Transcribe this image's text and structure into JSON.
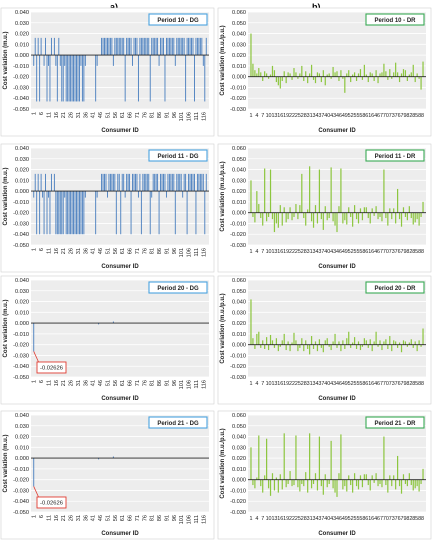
{
  "panel_labels": [
    "a)",
    "b)"
  ],
  "colors": {
    "dg": "#4a7fbf",
    "dr": "#8dc63f",
    "dg_border": "#4aa3df",
    "dr_border": "#3aaa55",
    "callout": "#e03c31"
  },
  "chart_data": [
    {
      "id": "dg10",
      "type": "bar",
      "title": "Period 10 - DG",
      "xlabel": "Consumer ID",
      "ylabel": "Cost variation (m.u.)",
      "ylim": [
        -0.05,
        0.04
      ],
      "yticks": [
        "-0.050",
        "-0.040",
        "-0.030",
        "-0.020",
        "-0.010",
        "0.000",
        "0.010",
        "0.020",
        "0.030",
        "0.040"
      ],
      "xticks": [
        "1",
        "6",
        "11",
        "16",
        "21",
        "26",
        "31",
        "36",
        "41",
        "46",
        "51",
        "56",
        "61",
        "66",
        "71",
        "76",
        "81",
        "86",
        "91",
        "96",
        "101",
        "106",
        "111",
        "116"
      ],
      "n": 118,
      "values": [
        -0.01,
        0.016,
        -0.043,
        0.016,
        -0.043,
        0.016,
        0,
        -0.01,
        0.016,
        -0.043,
        -0.01,
        -0.043,
        0.016,
        0,
        0.016,
        -0.01,
        -0.043,
        0.016,
        -0.01,
        -0.043,
        -0.043,
        -0.01,
        -0.043,
        -0.043,
        -0.043,
        -0.043,
        -0.043,
        -0.043,
        -0.043,
        -0.043,
        -0.043,
        -0.043,
        -0.01,
        -0.043,
        -0.043,
        -0.01,
        0,
        0,
        0,
        0,
        0,
        0,
        -0.043,
        -0.01,
        0,
        0,
        0.016,
        0.016,
        0.016,
        0.016,
        0.016,
        0.016,
        0.016,
        0.016,
        -0.01,
        0.016,
        0.016,
        0.016,
        0.016,
        0.016,
        0.016,
        0.016,
        -0.043,
        0.016,
        0.016,
        0.016,
        0.016,
        -0.01,
        0.016,
        0.016,
        0.016,
        -0.043,
        0.016,
        0.016,
        0.016,
        0.016,
        0.016,
        0.016,
        0.016,
        -0.043,
        0.016,
        0.016,
        0.016,
        0.016,
        0.016,
        -0.01,
        0.016,
        0.016,
        0.016,
        -0.043,
        0.016,
        0.016,
        0.016,
        0.016,
        0.016,
        0.016,
        -0.01,
        0.016,
        0.016,
        0.016,
        0.016,
        0.016,
        0.016,
        -0.043,
        0.016,
        0.016,
        0.016,
        0.016,
        0.016,
        -0.043,
        0.016,
        0.016,
        0.016,
        0.016,
        0.016,
        -0.01,
        -0.043,
        0.016
      ]
    },
    {
      "id": "dr10",
      "type": "bar",
      "title": "Period 10 - DR",
      "xlabel": "Consumer ID",
      "ylabel": "Cost variation (m.u./p.u.)",
      "ylim": [
        -0.03,
        0.06
      ],
      "yticks": [
        "-0.030",
        "-0.020",
        "-0.010",
        "0.000",
        "0.010",
        "0.020",
        "0.030",
        "0.040",
        "0.050",
        "0.060"
      ],
      "xticks": [
        "1",
        "4",
        "7",
        "10",
        "13",
        "16",
        "19",
        "22",
        "25",
        "28",
        "31",
        "34",
        "37",
        "40",
        "43",
        "46",
        "49",
        "52",
        "55",
        "58",
        "61",
        "64",
        "67",
        "70",
        "73",
        "76",
        "79",
        "82",
        "85",
        "88"
      ],
      "n": 89,
      "values": [
        0.04,
        0.012,
        0.006,
        0.003,
        0.008,
        0.004,
        -0.004,
        0.005,
        0.003,
        -0.002,
        0.002,
        0.01,
        0.006,
        -0.005,
        -0.008,
        -0.011,
        -0.004,
        0.005,
        -0.006,
        0.004,
        0.003,
        -0.003,
        0.008,
        0.004,
        -0.002,
        0.003,
        0.01,
        -0.004,
        0.005,
        -0.006,
        0.003,
        0.011,
        -0.003,
        -0.006,
        0.004,
        0.003,
        -0.005,
        0.006,
        -0.008,
        0.002,
        0.003,
        -0.002,
        0.009,
        0.004,
        0.005,
        -0.004,
        0.006,
        -0.002,
        -0.015,
        0.003,
        0.006,
        -0.005,
        0.002,
        0.004,
        -0.004,
        0.003,
        0.007,
        -0.003,
        0.011,
        0.002,
        -0.005,
        0.004,
        0.003,
        -0.004,
        0.006,
        -0.006,
        0.003,
        0.004,
        0.012,
        0.005,
        -0.003,
        0.007,
        -0.002,
        0.004,
        0.013,
        0.004,
        -0.005,
        0.003,
        0.007,
        0.006,
        -0.004,
        0.002,
        0.004,
        0.011,
        -0.005,
        0.003,
        -0.002,
        -0.012,
        0.014
      ]
    },
    {
      "id": "dg11",
      "type": "bar",
      "title": "Period 11 - DG",
      "xlabel": "Consumer ID",
      "ylabel": "Cost variation (m.u.)",
      "ylim": [
        -0.05,
        0.04
      ],
      "yticks": [
        "-0.050",
        "-0.040",
        "-0.030",
        "-0.020",
        "-0.010",
        "0.000",
        "0.010",
        "0.020",
        "0.030",
        "0.040"
      ],
      "xticks": [
        "1",
        "6",
        "11",
        "16",
        "21",
        "26",
        "31",
        "36",
        "41",
        "46",
        "51",
        "56",
        "61",
        "66",
        "71",
        "76",
        "81",
        "86",
        "91",
        "96",
        "101",
        "106",
        "111",
        "116"
      ],
      "n": 118,
      "values": [
        -0.006,
        0.016,
        -0.04,
        0.016,
        -0.04,
        0.016,
        -0.006,
        -0.04,
        0.016,
        -0.04,
        -0.006,
        -0.04,
        0.016,
        0,
        0.016,
        -0.04,
        -0.04,
        -0.04,
        -0.04,
        -0.04,
        -0.04,
        -0.006,
        -0.04,
        -0.04,
        -0.04,
        -0.04,
        -0.04,
        -0.04,
        -0.04,
        -0.04,
        -0.04,
        -0.04,
        -0.04,
        -0.04,
        -0.04,
        -0.006,
        0,
        0,
        0,
        0,
        0,
        0,
        -0.04,
        -0.006,
        0,
        0,
        0.016,
        0.016,
        0.016,
        0.016,
        -0.006,
        0.016,
        0.016,
        0.016,
        0.016,
        0.016,
        -0.04,
        0.016,
        0.016,
        -0.04,
        0.016,
        0.016,
        -0.006,
        0.016,
        0.016,
        0.016,
        -0.04,
        0.016,
        0.016,
        0.016,
        0.016,
        -0.006,
        0.016,
        -0.04,
        0.016,
        0.016,
        0.016,
        0.016,
        0.016,
        -0.04,
        -0.006,
        0.016,
        0.016,
        0.016,
        0.016,
        -0.04,
        0.016,
        0.016,
        0.016,
        0.016,
        -0.006,
        0.016,
        0.016,
        0.016,
        0.016,
        0.016,
        -0.04,
        0.016,
        0.016,
        0.016,
        0.016,
        -0.006,
        0.016,
        0.016,
        -0.04,
        0.016,
        0.016,
        0.016,
        0.016,
        0.016,
        -0.04,
        0.016,
        0.016,
        0.016,
        0.016,
        0.016,
        -0.04,
        0.016
      ]
    },
    {
      "id": "dr11",
      "type": "bar",
      "title": "Period 11 - DR",
      "xlabel": "Consumer ID",
      "ylabel": "Cost variation (m.u./p.u.)",
      "ylim": [
        -0.03,
        0.06
      ],
      "yticks": [
        "-0.030",
        "-0.020",
        "-0.010",
        "0.000",
        "0.010",
        "0.020",
        "0.030",
        "0.040",
        "0.050",
        "0.060"
      ],
      "xticks": [
        "1",
        "4",
        "7",
        "10",
        "13",
        "16",
        "19",
        "22",
        "25",
        "28",
        "31",
        "34",
        "37",
        "40",
        "43",
        "46",
        "49",
        "52",
        "55",
        "58",
        "61",
        "64",
        "67",
        "70",
        "73",
        "76",
        "79",
        "82",
        "85",
        "88"
      ],
      "n": 89,
      "values": [
        0.03,
        -0.004,
        -0.009,
        0.02,
        0.008,
        -0.005,
        -0.012,
        0.041,
        -0.008,
        -0.004,
        0.04,
        -0.006,
        -0.018,
        -0.01,
        -0.014,
        0.007,
        -0.012,
        0.005,
        -0.009,
        -0.006,
        0.005,
        -0.007,
        -0.004,
        0.008,
        -0.006,
        0.007,
        0.036,
        -0.005,
        -0.012,
        0.003,
        0.043,
        -0.008,
        -0.014,
        0.007,
        -0.01,
        0.04,
        -0.006,
        -0.016,
        0.006,
        -0.007,
        -0.005,
        0.042,
        -0.008,
        -0.012,
        -0.018,
        0.006,
        0.041,
        -0.01,
        -0.007,
        -0.011,
        0.005,
        -0.004,
        -0.013,
        0.007,
        -0.006,
        -0.01,
        0.004,
        -0.007,
        0.005,
        0.005,
        -0.005,
        -0.01,
        0.004,
        -0.003,
        0.006,
        -0.006,
        -0.004,
        -0.008,
        0.04,
        -0.005,
        -0.012,
        0.004,
        -0.006,
        0.004,
        -0.01,
        0.022,
        -0.006,
        -0.013,
        0.005,
        -0.004,
        -0.007,
        0.006,
        -0.005,
        -0.011,
        -0.009,
        -0.006,
        -0.012,
        -0.004,
        0.01
      ]
    },
    {
      "id": "dg20",
      "type": "bar",
      "title": "Period 20 - DG",
      "xlabel": "Consumer ID",
      "ylabel": "Cost variation (m.u.)",
      "ylim": [
        -0.05,
        0.04
      ],
      "yticks": [
        "-0.050",
        "-0.040",
        "-0.030",
        "-0.020",
        "-0.010",
        "0.000",
        "0.010",
        "0.020",
        "0.030",
        "0.040"
      ],
      "xticks": [
        "1",
        "6",
        "11",
        "16",
        "21",
        "26",
        "31",
        "36",
        "41",
        "46",
        "51",
        "56",
        "61",
        "66",
        "71",
        "76",
        "81",
        "86",
        "91",
        "96",
        "101",
        "106",
        "111",
        "116"
      ],
      "n": 118,
      "values": [
        -0.02626,
        0,
        0,
        0,
        0,
        0,
        0,
        0,
        0,
        0,
        0,
        0,
        0,
        0,
        0,
        0,
        0,
        0,
        0,
        0,
        0,
        0,
        0,
        0,
        0,
        0,
        0,
        0,
        0,
        0,
        0,
        0,
        0,
        0,
        0,
        0,
        0,
        0,
        0,
        0,
        0,
        0,
        0,
        0,
        -0.0012,
        0,
        0,
        0,
        0,
        0,
        0,
        0,
        0,
        0,
        0.0015,
        0,
        0,
        0,
        0,
        0,
        0,
        0,
        0,
        0,
        0,
        0,
        0,
        0,
        0,
        0,
        0,
        0,
        0,
        0,
        0,
        0,
        0,
        0,
        0,
        0,
        0,
        0,
        0,
        0,
        0,
        0,
        0,
        0,
        0,
        0,
        0,
        0,
        0,
        0,
        0,
        0,
        0,
        0,
        0,
        0,
        0,
        0,
        0,
        0,
        0,
        0,
        0,
        0,
        0,
        0,
        0,
        0,
        0,
        0,
        0,
        0,
        0,
        0
      ],
      "callout": {
        "index": 0,
        "label": "-0.02626"
      }
    },
    {
      "id": "dr20",
      "type": "bar",
      "title": "Period 20 - DR",
      "xlabel": "Consumer ID",
      "ylabel": "Cost variation (m.u./p.u.)",
      "ylim": [
        -0.03,
        0.06
      ],
      "yticks": [
        "-0.030",
        "-0.020",
        "-0.010",
        "0.000",
        "0.010",
        "0.020",
        "0.030",
        "0.040",
        "0.050",
        "0.060"
      ],
      "xticks": [
        "1",
        "4",
        "7",
        "10",
        "13",
        "16",
        "19",
        "22",
        "25",
        "28",
        "31",
        "34",
        "37",
        "40",
        "43",
        "46",
        "49",
        "52",
        "55",
        "58",
        "61",
        "64",
        "67",
        "70",
        "73",
        "76",
        "79",
        "82",
        "85",
        "88"
      ],
      "n": 89,
      "values": [
        0.042,
        0.006,
        -0.004,
        0.01,
        0.012,
        -0.003,
        0.004,
        -0.004,
        0.007,
        -0.005,
        0.009,
        0.004,
        -0.003,
        0.006,
        -0.006,
        -0.002,
        0.004,
        0.01,
        -0.005,
        0.003,
        -0.006,
        0.002,
        0.011,
        0.004,
        -0.006,
        -0.003,
        0.006,
        -0.006,
        0.004,
        -0.004,
        -0.009,
        0.008,
        -0.004,
        0.003,
        -0.006,
        0.005,
        -0.003,
        -0.007,
        0.004,
        0.006,
        -0.002,
        -0.005,
        0.003,
        0.01,
        -0.003,
        0.003,
        -0.006,
        0.004,
        -0.004,
        0.006,
        0.012,
        -0.003,
        0.002,
        0.007,
        -0.004,
        0.003,
        -0.005,
        -0.002,
        0.006,
        0.004,
        -0.003,
        0.005,
        -0.006,
        0.003,
        0.012,
        -0.002,
        0.004,
        -0.005,
        0.003,
        0.005,
        -0.004,
        0.008,
        -0.006,
        0.004,
        0.003,
        -0.003,
        0.002,
        -0.007,
        0.004,
        0.003,
        -0.002,
        0.002,
        0.005,
        -0.003,
        0.003,
        -0.006,
        0.004,
        -0.002,
        0.015
      ]
    },
    {
      "id": "dg21",
      "type": "bar",
      "title": "Period 21 - DG",
      "xlabel": "Consumer ID",
      "ylabel": "Cost variation (m.u.)",
      "ylim": [
        -0.05,
        0.04
      ],
      "yticks": [
        "-0.050",
        "-0.040",
        "-0.030",
        "-0.020",
        "-0.010",
        "0.000",
        "0.010",
        "0.020",
        "0.030",
        "0.040"
      ],
      "xticks": [
        "1",
        "6",
        "11",
        "16",
        "21",
        "26",
        "31",
        "36",
        "41",
        "46",
        "51",
        "56",
        "61",
        "66",
        "71",
        "76",
        "81",
        "86",
        "91",
        "96",
        "101",
        "106",
        "111",
        "116"
      ],
      "n": 118,
      "values": [
        -0.02626,
        0,
        0,
        0,
        0,
        0,
        0,
        0,
        0,
        0,
        0,
        0,
        0,
        0,
        0,
        0,
        0,
        0,
        0,
        0,
        0,
        0,
        0,
        0,
        0,
        0,
        0,
        0,
        0,
        0,
        0,
        0,
        0,
        0,
        0,
        0,
        0,
        0,
        0,
        0,
        0,
        0,
        0,
        0,
        -0.0012,
        0,
        0,
        0,
        0,
        0,
        0,
        0,
        0,
        0,
        0.0015,
        0,
        0,
        0,
        0,
        0,
        0,
        0,
        0,
        0,
        0,
        0,
        0,
        0,
        0,
        0,
        0,
        0,
        0,
        0,
        0,
        0,
        0,
        0,
        0,
        0,
        0,
        0,
        0,
        0,
        0,
        0,
        0,
        0,
        0,
        0,
        0,
        0,
        0,
        0,
        0,
        0,
        0,
        0,
        0,
        0,
        0,
        0,
        0,
        0,
        0,
        0,
        0,
        0,
        0,
        0,
        0,
        0,
        0,
        0,
        0,
        0,
        0,
        0
      ],
      "callout": {
        "index": 0,
        "label": "-0.02626"
      }
    },
    {
      "id": "dr21",
      "type": "bar",
      "title": "Period 21 - DR",
      "xlabel": "Consumer ID",
      "ylabel": "Cost variation (m.u./p.u.)",
      "ylim": [
        -0.03,
        0.06
      ],
      "yticks": [
        "-0.030",
        "-0.020",
        "-0.010",
        "0.000",
        "0.010",
        "0.020",
        "0.030",
        "0.040",
        "0.050",
        "0.060"
      ],
      "xticks": [
        "1",
        "4",
        "7",
        "10",
        "13",
        "16",
        "19",
        "22",
        "25",
        "28",
        "31",
        "34",
        "37",
        "40",
        "43",
        "46",
        "49",
        "52",
        "55",
        "58",
        "61",
        "64",
        "67",
        "70",
        "73",
        "76",
        "79",
        "82",
        "85",
        "88"
      ],
      "n": 89,
      "values": [
        0.03,
        -0.005,
        -0.008,
        0.002,
        0.041,
        -0.006,
        -0.012,
        0.004,
        0.038,
        -0.008,
        -0.015,
        0.006,
        -0.01,
        0.002,
        -0.012,
        0.005,
        -0.009,
        0.043,
        -0.007,
        -0.004,
        0.008,
        -0.006,
        -0.005,
        0.041,
        -0.007,
        -0.011,
        -0.004,
        -0.006,
        0.007,
        -0.012,
        0.043,
        -0.008,
        -0.004,
        0.006,
        -0.01,
        0.04,
        -0.006,
        -0.014,
        0.005,
        -0.007,
        -0.004,
        0.036,
        -0.008,
        -0.012,
        -0.016,
        0.006,
        0.042,
        -0.009,
        -0.006,
        -0.011,
        0.004,
        -0.005,
        -0.012,
        0.006,
        -0.006,
        -0.009,
        0.004,
        -0.007,
        0.005,
        0.005,
        -0.005,
        -0.01,
        0.004,
        -0.003,
        0.006,
        -0.006,
        -0.004,
        -0.007,
        0.04,
        -0.005,
        -0.012,
        0.004,
        -0.006,
        0.004,
        -0.009,
        0.022,
        -0.006,
        -0.013,
        0.005,
        -0.004,
        -0.006,
        0.006,
        -0.005,
        -0.01,
        -0.008,
        -0.006,
        -0.011,
        -0.004,
        0.01
      ]
    }
  ]
}
